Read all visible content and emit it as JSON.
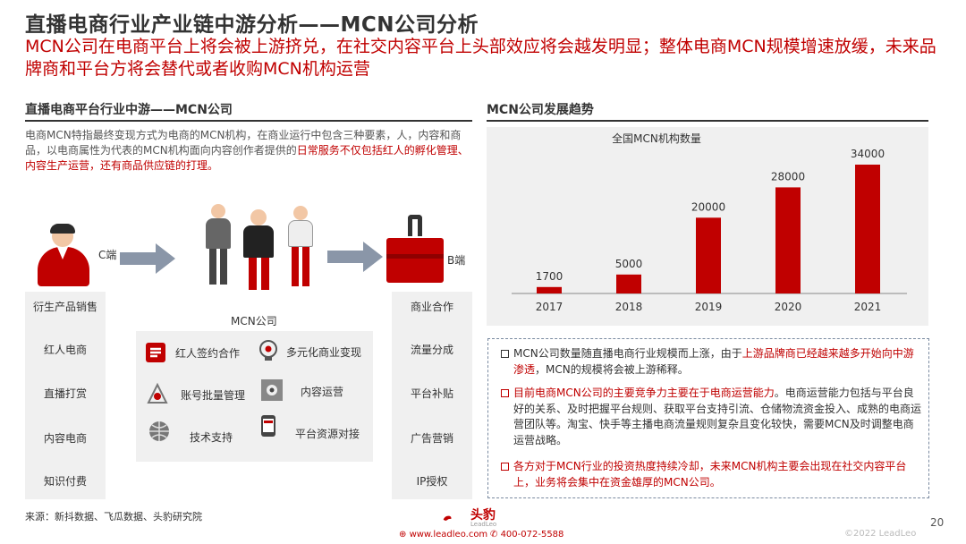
{
  "title": "直播电商行业产业链中游分析——MCN公司分析",
  "subtitle": "MCN公司在电商平台上将会被上游挤兑，在社交内容平台上头部效应将会越发明显；整体电商MCN规模增速放缓，未来品牌商和平台方将会替代或者收购MCN机构运营",
  "left": {
    "heading": "直播电商平台行业中游——MCN公司",
    "desc_normal": "电商MCN特指最终变现方式为电商的MCN机构，在商业运行中包含三种要素，人，内容和商品，以电商属性为代表的MCN机构面向内容创作者提供的",
    "desc_red": "日常服务不仅包括红人的孵化管理、内容生产运营，还有商品供应链的打理。",
    "c_label": "C端",
    "b_label": "B端",
    "c_items": [
      "衍生产品销售",
      "红人电商",
      "直播打赏",
      "内容电商",
      "知识付费"
    ],
    "b_items": [
      "商业合作",
      "流量分成",
      "平台补贴",
      "广告营销",
      "IP授权"
    ],
    "mcn_label": "MCN公司",
    "features": [
      "红人签约合作",
      "多元化商业变现",
      "账号批量管理",
      "内容运营",
      "技术支持",
      "平台资源对接"
    ],
    "source": "来源：新抖数据、飞瓜数据、头豹研究院"
  },
  "right": {
    "heading": "MCN公司发展趋势",
    "notes": [
      {
        "normal": "MCN公司数量随直播电商行业规模而上涨，由于",
        "red": "上游品牌商已经越来越多开始向中游渗透",
        "tail": "，MCN的规模将会被上游稀释。",
        "bullet_color": "#333333"
      },
      {
        "red": "目前电商MCN公司的主要竞争力主要在于电商运营能力",
        "tail": "。电商运营能力包括与平台良好的关系、及时把握平台规则、获取平台支持引流、仓储物流资金投入、成熟的电商运营团队等。淘宝、快手等主播电商流量规则复杂且变化较快，需要MCN及时调整电商运营战略。",
        "bullet_color": "#c00000",
        "normal": ""
      },
      {
        "normal": "各方对于MCN行业的投资热度持续冷却，未来MCN机构主要会出现在社交内容平台上，业务将会集中在资金雄厚的MCN公司。",
        "red": "",
        "tail": "",
        "bullet_color": "#c00000"
      }
    ]
  },
  "chart_data": {
    "type": "bar",
    "title": "全国MCN机构数量",
    "categories": [
      "2017",
      "2018",
      "2019",
      "2020",
      "2021"
    ],
    "values": [
      1700,
      5000,
      20000,
      28000,
      34000
    ],
    "value_labels": [
      "1700",
      "5000",
      "20000",
      "28000",
      "34000"
    ],
    "ylim": [
      0,
      34000
    ],
    "bar_color": "#c00000",
    "grid": false
  },
  "footer": {
    "logo_text": "头豹",
    "logo_sub": "LeadLeo",
    "website": "www.leadleo.com",
    "phone": "400-072-5588",
    "copyright": "©2022 LeadLeo",
    "page": "20"
  },
  "colors": {
    "accent": "#c00000",
    "panel": "#f0f0f0"
  },
  "icons": [
    "customer-icon",
    "influencer-group-icon",
    "briefcase-icon",
    "arrow-right-icon",
    "sign-contract-icon",
    "idea-lightbulb-icon",
    "account-management-icon",
    "content-operation-icon",
    "globe-tech-icon",
    "mobile-shop-icon"
  ]
}
